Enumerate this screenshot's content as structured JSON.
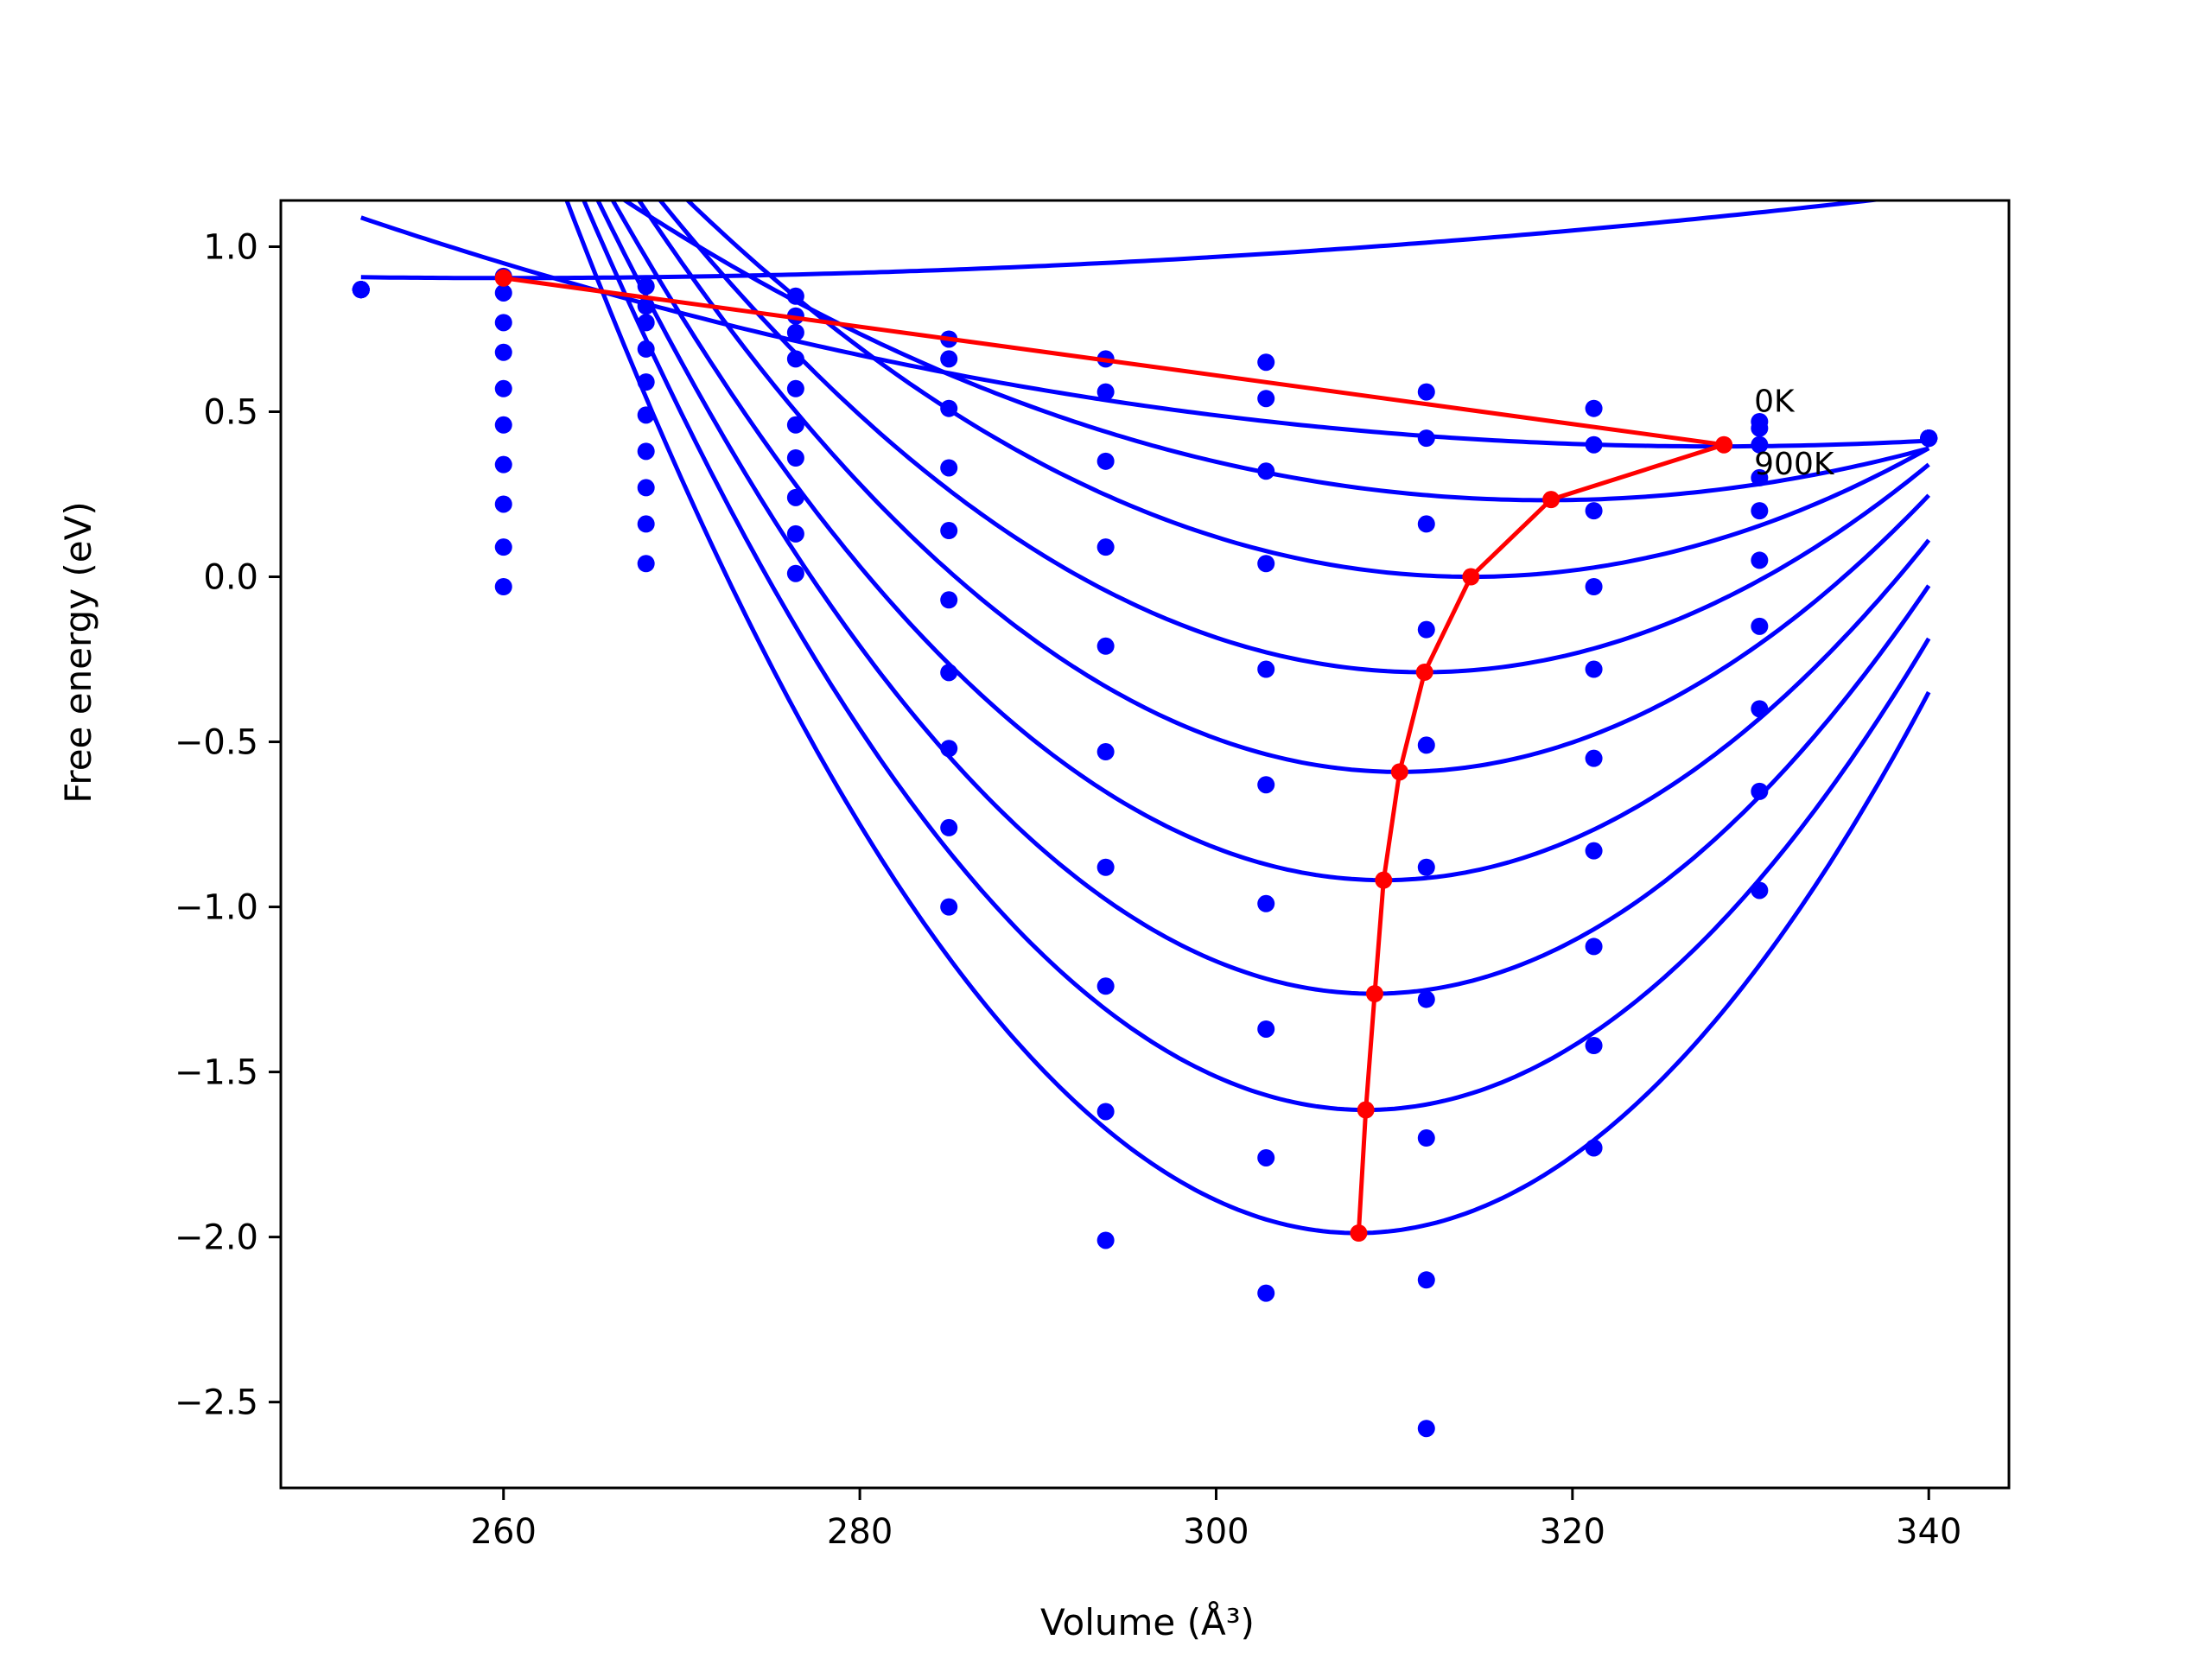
{
  "chart_data": {
    "type": "line",
    "xlabel": "Volume (Å³)",
    "ylabel": "Free energy (eV)",
    "xlim": [
      247.5,
      344.5
    ],
    "ylim": [
      -2.76,
      1.14
    ],
    "x_ticks": [
      260,
      280,
      300,
      320,
      340
    ],
    "x_tick_labels": [
      "260",
      "280",
      "300",
      "320",
      "340"
    ],
    "y_ticks": [
      1.0,
      0.5,
      0.0,
      -0.5,
      -1.0,
      -1.5,
      -2.0,
      -2.5
    ],
    "y_tick_labels": [
      "1.0",
      "0.5",
      "0.0",
      "−0.5",
      "−1.0",
      "−1.5",
      "−2.0",
      "−2.5"
    ],
    "grid": false,
    "annotations": [
      {
        "text": "0K",
        "x": 330.2,
        "y": 0.5
      },
      {
        "text": "900K",
        "x": 330.2,
        "y": 0.31
      }
    ],
    "series": [
      {
        "x": [
          252,
          260,
          268,
          276.4,
          285,
          293.8,
          302.8,
          311.8,
          321.2,
          330.5,
          340
        ],
        "values": [
          0.87,
          0.91,
          0.88,
          0.85,
          0.72,
          0.66,
          0.65,
          0.56,
          0.51,
          0.47,
          0.42
        ]
      },
      {
        "x": [
          252,
          260,
          268,
          276.4,
          285,
          293.8,
          302.8,
          311.8,
          321.2,
          330.5,
          340
        ],
        "values": [
          0.87,
          0.86,
          0.82,
          0.79,
          0.66,
          0.56,
          0.54,
          0.42,
          0.4,
          0.45,
          0.42
        ]
      },
      {
        "x": [
          252,
          260,
          268,
          276.4,
          285,
          293.8,
          302.8,
          311.8,
          321.2,
          330.5,
          340
        ],
        "values": [
          0.87,
          0.77,
          0.77,
          0.74,
          0.51,
          0.35,
          0.32,
          0.16,
          0.2,
          0.4,
          0.42
        ]
      },
      {
        "x": [
          252,
          260,
          268,
          276.4,
          285,
          293.8,
          302.8,
          311.8,
          321.2,
          330.5,
          340
        ],
        "values": [
          0.87,
          0.68,
          0.69,
          0.66,
          0.33,
          0.09,
          0.04,
          -0.16,
          -0.03,
          0.3,
          0.42
        ]
      },
      {
        "x": [
          252,
          260,
          268,
          276.4,
          285,
          293.8,
          302.8,
          311.8,
          321.2,
          330.5,
          340
        ],
        "values": [
          0.87,
          0.57,
          0.59,
          0.57,
          0.14,
          -0.21,
          -0.28,
          -0.51,
          -0.28,
          0.2,
          0.42
        ]
      },
      {
        "x": [
          252,
          260,
          268,
          276.4,
          285,
          293.8,
          302.8,
          311.8,
          321.2,
          330.5,
          340
        ],
        "values": [
          0.87,
          0.46,
          0.49,
          0.46,
          -0.07,
          -0.53,
          -0.63,
          -0.88,
          -0.55,
          0.05,
          0.42
        ]
      },
      {
        "x": [
          252,
          260,
          268,
          276.4,
          285,
          293.8,
          302.8,
          311.8,
          321.2,
          330.5,
          340
        ],
        "values": [
          0.87,
          0.34,
          0.38,
          0.36,
          -0.29,
          -0.88,
          -0.99,
          -1.28,
          -0.83,
          -0.15,
          0.42
        ]
      },
      {
        "x": [
          252,
          260,
          268,
          276.4,
          285,
          293.8,
          302.8,
          311.8,
          321.2,
          330.5,
          340
        ],
        "values": [
          0.87,
          0.22,
          0.27,
          0.24,
          -0.52,
          -1.24,
          -1.37,
          -1.7,
          -1.12,
          -0.4,
          0.42
        ]
      },
      {
        "x": [
          252,
          260,
          268,
          276.4,
          285,
          293.8,
          302.8,
          311.8,
          321.2,
          330.5,
          340
        ],
        "values": [
          0.87,
          0.09,
          0.16,
          0.13,
          -0.76,
          -1.62,
          -1.76,
          -2.13,
          -1.42,
          -0.65,
          0.42
        ]
      },
      {
        "x": [
          252,
          260,
          268,
          276.4,
          285,
          293.8,
          302.8,
          311.8,
          321.2,
          330.5,
          340
        ],
        "values": [
          0.87,
          -0.03,
          0.04,
          0.01,
          -1.0,
          -2.01,
          -2.17,
          -2.58,
          -1.73,
          -0.95,
          0.42
        ]
      }
    ],
    "fit_curves": [
      {
        "label": "0K",
        "v0": 260.0,
        "f0": 0.905,
        "k": 4e-05
      },
      {
        "v0": 328.0,
        "f0": 0.395,
        "k": 0.00012
      },
      {
        "v0": 318.5,
        "f0": 0.232,
        "k": 0.00034
      },
      {
        "v0": 314.3,
        "f0": 0.0,
        "k": 0.00059
      },
      {
        "v0": 311.6,
        "f0": -0.289,
        "k": 0.00078
      },
      {
        "v0": 310.3,
        "f0": -0.591,
        "k": 0.00095
      },
      {
        "v0": 309.4,
        "f0": -0.919,
        "k": 0.0011
      },
      {
        "v0": 308.8,
        "f0": -1.263,
        "k": 0.00127
      },
      {
        "v0": 308.4,
        "f0": -1.615,
        "k": 0.00143
      },
      {
        "label": "900K",
        "v0": 307.9,
        "f0": -1.988,
        "k": 0.00159
      }
    ],
    "fit_range": [
      252.0,
      340.0
    ],
    "minimum_path": {
      "x": [
        260.0,
        328.5,
        318.8,
        314.3,
        311.7,
        310.3,
        309.4,
        308.9,
        308.4,
        308.0
      ],
      "values": [
        0.905,
        0.4,
        0.234,
        0.0,
        -0.289,
        -0.591,
        -0.919,
        -1.263,
        -1.615,
        -1.988
      ]
    },
    "colors": {
      "series": "#0000ff",
      "minimum_path": "#ff0000",
      "axes": "#000000"
    }
  }
}
